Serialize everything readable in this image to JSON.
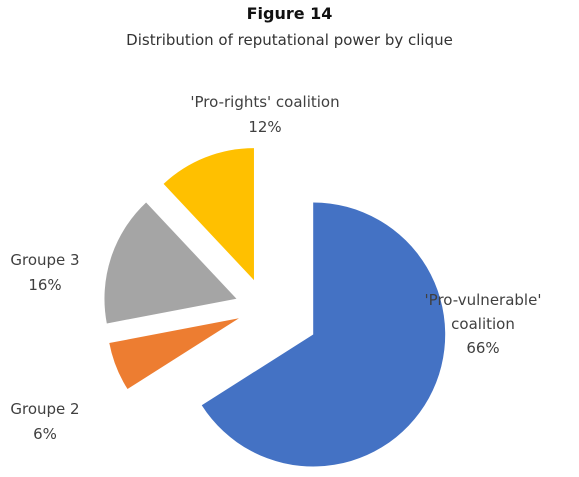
{
  "chart_data": {
    "type": "pie",
    "title": "Figure 14",
    "subtitle": "Distribution of reputational power by clique",
    "categories": [
      "'Pro-vulnerable' coalition",
      "Groupe 2",
      "Groupe 3",
      "'Pro-rights' coalition"
    ],
    "values": [
      66,
      6,
      16,
      12
    ],
    "value_labels": [
      "66%",
      "6%",
      "16%",
      "12%"
    ],
    "colors": [
      "#4472c4",
      "#ed7d31",
      "#a5a5a5",
      "#ffc000"
    ]
  }
}
